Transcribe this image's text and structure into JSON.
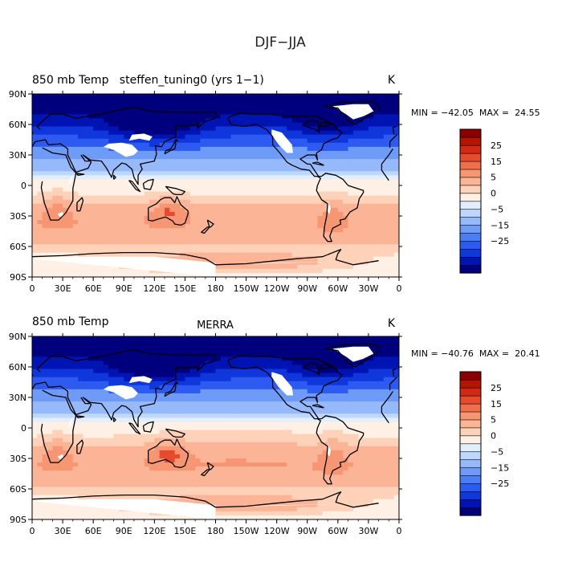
{
  "figure_title": "DJF−JJA",
  "unit": "K",
  "colors": {
    "land_mask": "#ffffff",
    "coast": "#000000",
    "levels": [
      "#00007f",
      "#0014b4",
      "#0f37dc",
      "#2d5af0",
      "#4b7df5",
      "#6e9bf8",
      "#96b9fb",
      "#bed7fd",
      "#e0eeff",
      "#fff0e6",
      "#fdd2b9",
      "#fbb496",
      "#f79673",
      "#f06e4b",
      "#e64b2d",
      "#d22814",
      "#b41400",
      "#8c0000"
    ]
  },
  "panels": [
    {
      "title_left": "850 mb Temp   steffen_tuning0 (yrs 1−1)",
      "title_center": "",
      "unit": "K",
      "stats": "MIN = −42.05  MAX =  24.55"
    },
    {
      "title_left": "850 mb Temp",
      "title_center": "MERRA",
      "unit": "K",
      "stats": "MIN = −40.76  MAX =  20.41"
    }
  ],
  "chart_data": [
    {
      "type": "heatmap",
      "title": "850 mb Temp   steffen_tuning0 (yrs 1−1)",
      "field": "850 mb temperature difference DJF−JJA",
      "units": "K",
      "min": -42.05,
      "max": 24.55,
      "x_range": [
        0,
        360
      ],
      "y_range": [
        -90,
        90
      ],
      "x_ticks": [
        "0",
        "30E",
        "60E",
        "90E",
        "120E",
        "150E",
        "180",
        "150W",
        "120W",
        "90W",
        "60W",
        "30W",
        "0"
      ],
      "y_ticks": [
        "90N",
        "60N",
        "30N",
        "0",
        "30S",
        "60S",
        "90S"
      ],
      "colorbar_levels": [
        -30,
        -25,
        -20,
        -15,
        -10,
        -5,
        -2.5,
        0,
        2.5,
        5,
        10,
        15,
        20,
        25,
        30
      ],
      "colorbar_labels": [
        "25",
        "15",
        "5",
        "0",
        "−5",
        "−15",
        "−25"
      ]
    },
    {
      "type": "heatmap",
      "title": "850 mb Temp  MERRA",
      "field": "850 mb temperature difference DJF−JJA",
      "units": "K",
      "min": -40.76,
      "max": 20.41,
      "x_range": [
        0,
        360
      ],
      "y_range": [
        -90,
        90
      ],
      "x_ticks": [
        "0",
        "30E",
        "60E",
        "90E",
        "120E",
        "150E",
        "180",
        "150W",
        "120W",
        "90W",
        "60W",
        "30W",
        "0"
      ],
      "y_ticks": [
        "90N",
        "60N",
        "30N",
        "0",
        "30S",
        "60S",
        "90S"
      ],
      "colorbar_levels": [
        -30,
        -25,
        -20,
        -15,
        -10,
        -5,
        -2.5,
        0,
        2.5,
        5,
        10,
        15,
        20,
        25,
        30
      ],
      "colorbar_labels": [
        "25",
        "15",
        "5",
        "0",
        "−5",
        "−15",
        "−25"
      ]
    }
  ]
}
